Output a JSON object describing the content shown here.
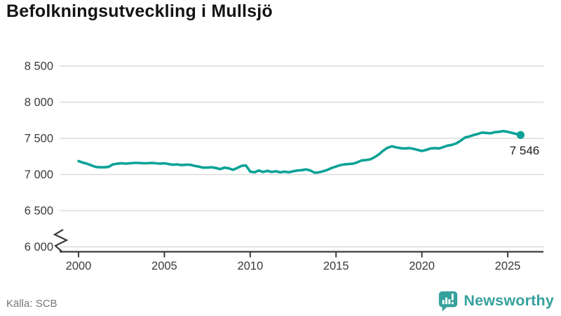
{
  "title": "Befolkningsutveckling i Mullsjö",
  "source": "Källa: SCB",
  "logo": {
    "text": "Newsworthy"
  },
  "colors": {
    "line": "#0aa296",
    "grid": "#dcdcdc",
    "axis": "#3c3c3c",
    "tick_text": "#3a3a3a",
    "title_text": "#141414",
    "muted_text": "#76767e",
    "logo_teal": "#35a19c"
  },
  "chart_data": {
    "type": "line",
    "title": "Befolkningsutveckling i Mullsjö",
    "xlabel": "",
    "ylabel": "",
    "grid": "horizontal",
    "axis_break_at_bottom": true,
    "end_label": "7 546",
    "last_value": 7546,
    "y_ticks": [
      {
        "value": 8500,
        "label": "8 500"
      },
      {
        "value": 8000,
        "label": "8 000"
      },
      {
        "value": 7500,
        "label": "7 500"
      },
      {
        "value": 7000,
        "label": "7 000"
      },
      {
        "value": 6500,
        "label": "6 500"
      },
      {
        "value": 6000,
        "label": "6 000"
      }
    ],
    "x_ticks": [
      {
        "value": 2000,
        "label": "2000"
      },
      {
        "value": 2005,
        "label": "2005"
      },
      {
        "value": 2010,
        "label": "2010"
      },
      {
        "value": 2015,
        "label": "2015"
      },
      {
        "value": 2020,
        "label": "2020"
      },
      {
        "value": 2025,
        "label": "2025"
      }
    ],
    "series": [
      {
        "name": "Befolkning i Mullsjö",
        "x_start": 2000.0,
        "x_step": 0.25,
        "values": [
          7185,
          7165,
          7150,
          7125,
          7105,
          7100,
          7100,
          7105,
          7140,
          7150,
          7155,
          7150,
          7155,
          7160,
          7160,
          7155,
          7155,
          7160,
          7155,
          7150,
          7155,
          7145,
          7135,
          7140,
          7130,
          7135,
          7135,
          7120,
          7110,
          7095,
          7095,
          7100,
          7090,
          7075,
          7095,
          7085,
          7065,
          7090,
          7120,
          7125,
          7040,
          7030,
          7055,
          7035,
          7050,
          7035,
          7045,
          7030,
          7040,
          7030,
          7045,
          7055,
          7060,
          7070,
          7055,
          7025,
          7030,
          7045,
          7065,
          7090,
          7110,
          7130,
          7140,
          7145,
          7150,
          7170,
          7195,
          7200,
          7210,
          7240,
          7280,
          7330,
          7370,
          7390,
          7375,
          7365,
          7360,
          7365,
          7355,
          7340,
          7325,
          7340,
          7360,
          7365,
          7360,
          7380,
          7400,
          7410,
          7430,
          7465,
          7510,
          7525,
          7545,
          7560,
          7580,
          7575,
          7570,
          7585,
          7590,
          7600,
          7590,
          7575,
          7560,
          7546
        ]
      }
    ]
  }
}
